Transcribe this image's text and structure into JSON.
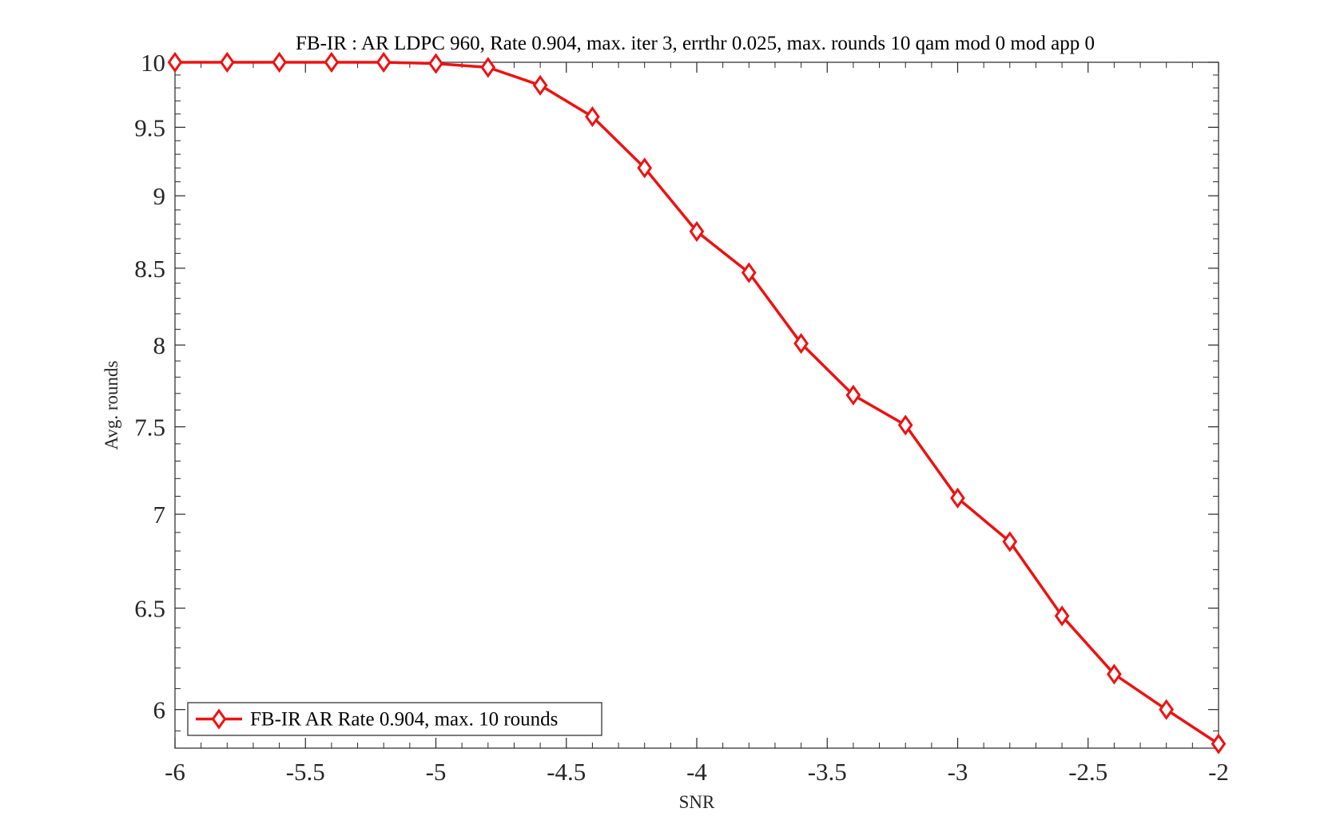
{
  "chart_data": {
    "type": "line",
    "title": "FB-IR : AR LDPC 960, Rate 0.904, max. iter 3, errthr 0.025, max. rounds 10 qam mod 0 mod app 0",
    "xlabel": "SNR",
    "ylabel": "Avg. rounds",
    "xlim": [
      -6,
      -2
    ],
    "ylim": [
      5.82,
      10
    ],
    "y_scale": "log",
    "x_ticks": [
      -6,
      -5.5,
      -5,
      -4.5,
      -4,
      -3.5,
      -3,
      -2.5,
      -2
    ],
    "x_tick_labels": [
      "-6",
      "-5.5",
      "-5",
      "-4.5",
      "-4",
      "-3.5",
      "-3",
      "-2.5",
      "-2"
    ],
    "y_ticks": [
      6,
      6.5,
      7,
      7.5,
      8,
      8.5,
      9,
      9.5,
      10
    ],
    "y_tick_labels": [
      "6",
      "6.5",
      "7",
      "7.5",
      "8",
      "8.5",
      "9",
      "9.5",
      "10"
    ],
    "grid": false,
    "legend_position": "bottom-left",
    "series": [
      {
        "name": "FB-IR AR Rate 0.904, max. 10 rounds",
        "color": "#ee1111",
        "marker": "diamond",
        "x": [
          -6,
          -5.8,
          -5.6,
          -5.4,
          -5.2,
          -5,
          -4.8,
          -4.6,
          -4.4,
          -4.2,
          -4,
          -3.8,
          -3.6,
          -3.4,
          -3.2,
          -3,
          -2.8,
          -2.6,
          -2.4,
          -2.2,
          -2
        ],
        "y": [
          10,
          10,
          10,
          10,
          10,
          9.99,
          9.96,
          9.82,
          9.58,
          9.2,
          8.75,
          8.47,
          8.01,
          7.69,
          7.51,
          7.09,
          6.85,
          6.46,
          6.17,
          6.0,
          5.84
        ]
      }
    ]
  }
}
